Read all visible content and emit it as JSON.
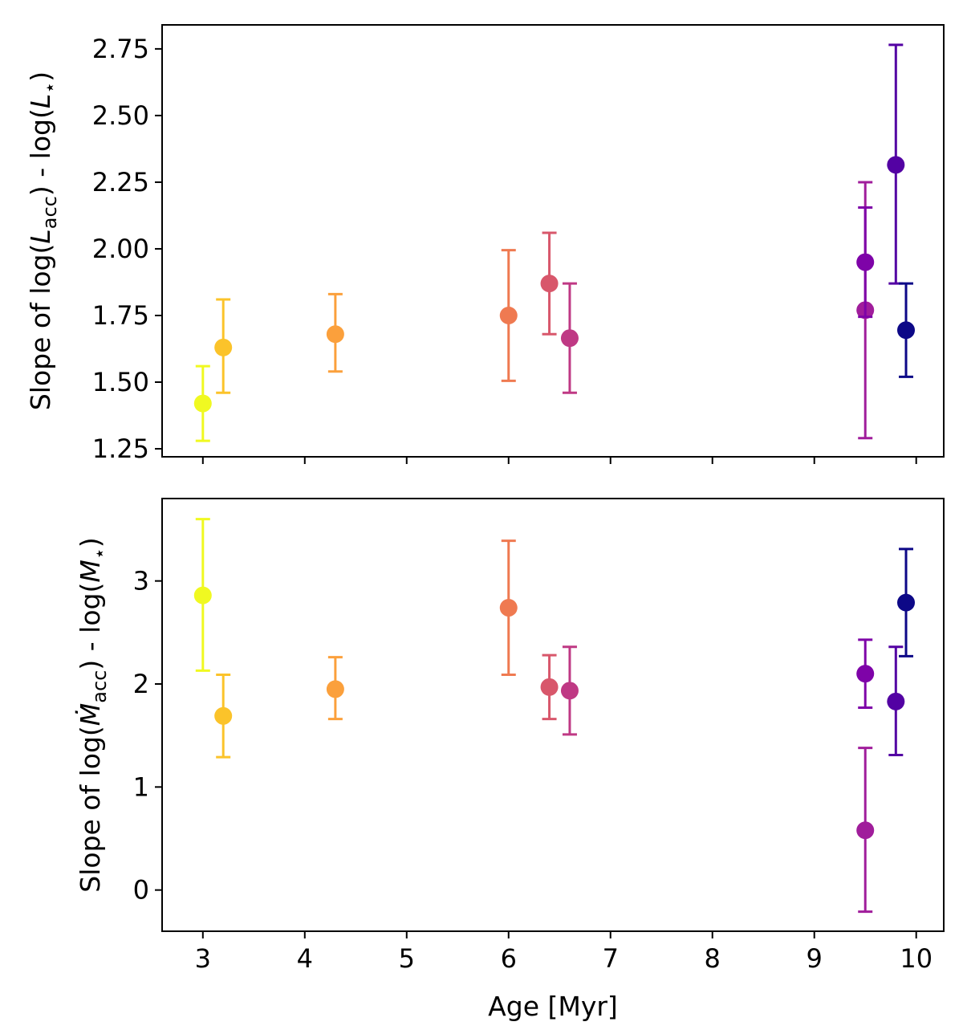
{
  "chart_data": [
    {
      "type": "scatter",
      "title": "",
      "xlabel": "",
      "ylabel_parts": [
        "Slope of log(",
        "L",
        "acc",
        ") - log(",
        "L",
        "⋆",
        ")"
      ],
      "xlim": [
        2.6,
        10.27
      ],
      "ylim": [
        1.22,
        2.84
      ],
      "xticks": [
        3,
        4,
        5,
        6,
        7,
        8,
        9,
        10
      ],
      "xtick_labels_shown": false,
      "yticks": [
        1.25,
        1.5,
        1.75,
        2.0,
        2.25,
        2.5,
        2.75
      ],
      "ytick_labels": [
        "1.25",
        "1.50",
        "1.75",
        "2.00",
        "2.25",
        "2.50",
        "2.75"
      ],
      "grid": false,
      "points": [
        {
          "x": 3.0,
          "y": 1.42,
          "err_low": 1.28,
          "err_high": 1.56,
          "color": "#f0f921"
        },
        {
          "x": 3.2,
          "y": 1.63,
          "err_low": 1.46,
          "err_high": 1.81,
          "color": "#fbc32a"
        },
        {
          "x": 4.3,
          "y": 1.68,
          "err_low": 1.54,
          "err_high": 1.83,
          "color": "#fba03c"
        },
        {
          "x": 6.0,
          "y": 1.75,
          "err_low": 1.505,
          "err_high": 1.995,
          "color": "#ef7a51"
        },
        {
          "x": 6.4,
          "y": 1.87,
          "err_low": 1.68,
          "err_high": 2.06,
          "color": "#d8576b"
        },
        {
          "x": 6.6,
          "y": 1.665,
          "err_low": 1.46,
          "err_high": 1.87,
          "color": "#bf3984"
        },
        {
          "x": 9.5,
          "y": 1.77,
          "err_low": 1.29,
          "err_high": 2.25,
          "color": "#a01d9b"
        },
        {
          "x": 9.5,
          "y": 1.95,
          "err_low": 1.745,
          "err_high": 2.155,
          "color": "#7e03a8"
        },
        {
          "x": 9.8,
          "y": 2.315,
          "err_low": 1.87,
          "err_high": 2.765,
          "color": "#5302a3"
        },
        {
          "x": 9.9,
          "y": 1.695,
          "err_low": 1.52,
          "err_high": 1.87,
          "color": "#0d0887"
        }
      ]
    },
    {
      "type": "scatter",
      "title": "",
      "xlabel": "Age [Myr]",
      "ylabel_parts": [
        "Slope of log(",
        "Ṁ",
        "acc",
        ") - log(",
        "M",
        "⋆",
        ")"
      ],
      "xlim": [
        2.6,
        10.27
      ],
      "ylim": [
        -0.4,
        3.8
      ],
      "xticks": [
        3,
        4,
        5,
        6,
        7,
        8,
        9,
        10
      ],
      "xtick_labels": [
        "3",
        "4",
        "5",
        "6",
        "7",
        "8",
        "9",
        "10"
      ],
      "yticks": [
        0,
        1,
        2,
        3
      ],
      "ytick_labels": [
        "0",
        "1",
        "2",
        "3"
      ],
      "grid": false,
      "points": [
        {
          "x": 3.0,
          "y": 2.86,
          "err_low": 2.13,
          "err_high": 3.6,
          "color": "#f0f921"
        },
        {
          "x": 3.2,
          "y": 1.69,
          "err_low": 1.29,
          "err_high": 2.09,
          "color": "#fbc32a"
        },
        {
          "x": 4.3,
          "y": 1.95,
          "err_low": 1.66,
          "err_high": 2.26,
          "color": "#fba03c"
        },
        {
          "x": 6.0,
          "y": 2.74,
          "err_low": 2.09,
          "err_high": 3.39,
          "color": "#ef7a51"
        },
        {
          "x": 6.4,
          "y": 1.97,
          "err_low": 1.66,
          "err_high": 2.28,
          "color": "#d8576b"
        },
        {
          "x": 6.6,
          "y": 1.935,
          "err_low": 1.51,
          "err_high": 2.36,
          "color": "#bf3984"
        },
        {
          "x": 9.5,
          "y": 0.58,
          "err_low": -0.21,
          "err_high": 1.38,
          "color": "#a01d9b"
        },
        {
          "x": 9.5,
          "y": 2.1,
          "err_low": 1.77,
          "err_high": 2.43,
          "color": "#7e03a8"
        },
        {
          "x": 9.8,
          "y": 1.83,
          "err_low": 1.31,
          "err_high": 2.36,
          "color": "#5302a3"
        },
        {
          "x": 9.9,
          "y": 2.79,
          "err_low": 2.27,
          "err_high": 3.31,
          "color": "#0d0887"
        }
      ]
    }
  ]
}
